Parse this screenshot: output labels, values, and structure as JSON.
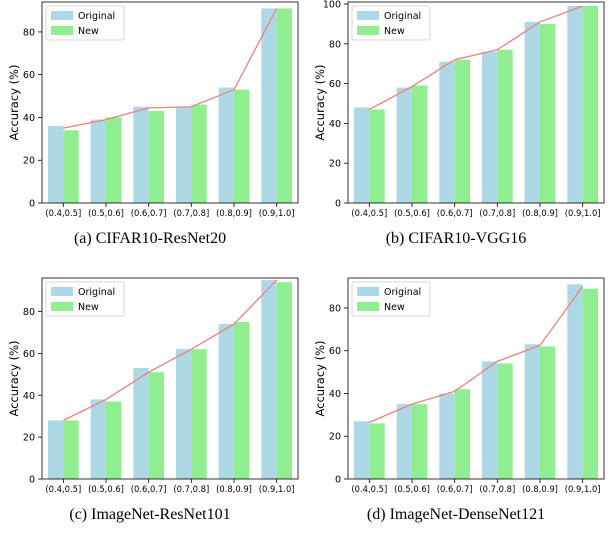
{
  "colors": {
    "original": "#add8e6",
    "new": "#90ee90",
    "line": "#f08080",
    "legend_border": "#cccccc"
  },
  "legend": {
    "original_label": "Original",
    "new_label": "New",
    "placement": "top-left"
  },
  "chart_data": [
    {
      "type": "bar",
      "caption": "(a)  CIFAR10-ResNet20",
      "ylabel": "Accuracy (%)",
      "ylim": [
        0,
        94
      ],
      "yticks": [
        0,
        20,
        40,
        60,
        80
      ],
      "categories": [
        "(0.4,0.5]",
        "(0.5,0.6]",
        "(0.6,0.7]",
        "(0.7,0.8]",
        "(0.8,0.9]",
        "(0.9,1.0]"
      ],
      "series": [
        {
          "name": "Original",
          "values": [
            36,
            39,
            45,
            45,
            54,
            91
          ]
        },
        {
          "name": "New",
          "values": [
            34,
            40,
            43,
            46,
            53,
            91
          ]
        }
      ],
      "line": [
        35,
        39,
        44.5,
        45,
        53,
        91
      ],
      "grid": false
    },
    {
      "type": "bar",
      "caption": "(b)  CIFAR10-VGG16",
      "ylabel": "Accuracy (%)",
      "ylim": [
        0,
        101
      ],
      "yticks": [
        0,
        20,
        40,
        60,
        80,
        100
      ],
      "categories": [
        "(0.4,0.5]",
        "(0.5,0.6]",
        "(0.6,0.7]",
        "(0.7,0.8]",
        "(0.8,0.9]",
        "(0.9,1.0]"
      ],
      "series": [
        {
          "name": "Original",
          "values": [
            48,
            58,
            71,
            76,
            91,
            99
          ]
        },
        {
          "name": "New",
          "values": [
            47,
            59,
            72,
            77,
            90,
            99
          ]
        }
      ],
      "line": [
        47,
        58.5,
        72,
        77,
        91,
        99
      ],
      "grid": false
    },
    {
      "type": "bar",
      "caption": "(c)  ImageNet-ResNet101",
      "ylabel": "Accuracy (%)",
      "ylim": [
        0,
        96
      ],
      "yticks": [
        0,
        20,
        40,
        60,
        80
      ],
      "categories": [
        "(0.4,0.5]",
        "(0.5,0.6]",
        "(0.6,0.7]",
        "(0.7,0.8]",
        "(0.8,0.9]",
        "(0.9,1.0]"
      ],
      "series": [
        {
          "name": "Original",
          "values": [
            28,
            38,
            53,
            62,
            74,
            95
          ]
        },
        {
          "name": "New",
          "values": [
            28,
            37,
            51,
            62,
            75,
            94
          ]
        }
      ],
      "line": [
        28,
        38,
        51,
        62,
        74,
        95
      ],
      "grid": false
    },
    {
      "type": "bar",
      "caption": "(d)  ImageNet-DenseNet121",
      "ylabel": "Accuracy (%)",
      "ylim": [
        0,
        94
      ],
      "yticks": [
        0,
        20,
        40,
        60,
        80
      ],
      "categories": [
        "(0.4,0.5]",
        "(0.5,0.6]",
        "(0.6,0.7]",
        "(0.7,0.8]",
        "(0.8,0.9]",
        "(0.9,1.0]"
      ],
      "series": [
        {
          "name": "Original",
          "values": [
            27,
            35,
            40,
            55,
            63,
            91
          ]
        },
        {
          "name": "New",
          "values": [
            26,
            35,
            42,
            54,
            62,
            89
          ]
        }
      ],
      "line": [
        26.5,
        35,
        41,
        55,
        62.5,
        90
      ],
      "grid": false
    }
  ]
}
